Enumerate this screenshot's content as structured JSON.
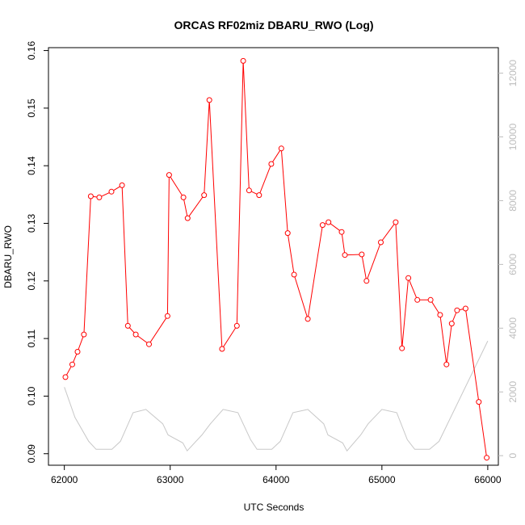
{
  "chart_data": {
    "type": "line",
    "title": "ORCAS RF02miz DBARU_RWO (Log)",
    "xlabel": "UTC Seconds",
    "ylabel": "DBARU_RWO",
    "xlim": [
      61850,
      66100
    ],
    "ylim": [
      0.088,
      0.1605
    ],
    "y2lim": [
      -300,
      12800
    ],
    "x_ticks": [
      62000,
      63000,
      64000,
      65000,
      66000
    ],
    "y_ticks": [
      0.09,
      0.1,
      0.11,
      0.12,
      0.13,
      0.14,
      0.15,
      0.16
    ],
    "y2_ticks": [
      0,
      2000,
      4000,
      6000,
      8000,
      10000,
      12000
    ],
    "colors": {
      "primary": "#ff0000",
      "secondary": "#c8c8c8",
      "secondary_axis": "#bdbdbd"
    },
    "series": [
      {
        "axis": "left",
        "style": "line+open-circles",
        "x": [
          62010,
          62075,
          62125,
          62185,
          62250,
          62330,
          62445,
          62545,
          62600,
          62675,
          62800,
          62975,
          62990,
          63125,
          63165,
          63320,
          63370,
          63490,
          63630,
          63690,
          63745,
          63840,
          63955,
          64050,
          64110,
          64170,
          64300,
          64440,
          64495,
          64620,
          64650,
          64810,
          64855,
          64990,
          65130,
          65190,
          65250,
          65335,
          65460,
          65550,
          65610,
          65660,
          65710,
          65790,
          65915,
          65990
        ],
        "y": [
          0.1033,
          0.1055,
          0.1077,
          0.1107,
          0.1347,
          0.1345,
          0.1355,
          0.1366,
          0.1122,
          0.1107,
          0.109,
          0.1139,
          0.1384,
          0.1345,
          0.1309,
          0.1349,
          0.1514,
          0.1082,
          0.1122,
          0.1582,
          0.1357,
          0.1349,
          0.1403,
          0.143,
          0.1283,
          0.1211,
          0.1134,
          0.1297,
          0.1302,
          0.1285,
          0.1245,
          0.1246,
          0.12,
          0.1267,
          0.1302,
          0.1083,
          0.1205,
          0.1167,
          0.1167,
          0.1141,
          0.1055,
          0.1126,
          0.1149,
          0.1152,
          0.099,
          0.0893
        ]
      },
      {
        "axis": "right",
        "style": "line",
        "x": [
          62000,
          62100,
          62230,
          62300,
          62450,
          62530,
          62650,
          62770,
          62930,
          62980,
          63120,
          63160,
          63300,
          63380,
          63500,
          63640,
          63760,
          63820,
          63960,
          64040,
          64160,
          64300,
          64450,
          64490,
          64630,
          64670,
          64800,
          64870,
          65000,
          65140,
          65240,
          65310,
          65450,
          65540,
          66000
        ],
        "y": [
          2150,
          1200,
          450,
          200,
          200,
          450,
          1350,
          1450,
          1000,
          650,
          400,
          150,
          650,
          1000,
          1450,
          1350,
          500,
          200,
          200,
          450,
          1350,
          1450,
          1000,
          650,
          400,
          150,
          650,
          1000,
          1450,
          1350,
          500,
          200,
          200,
          450,
          3600
        ]
      }
    ]
  }
}
